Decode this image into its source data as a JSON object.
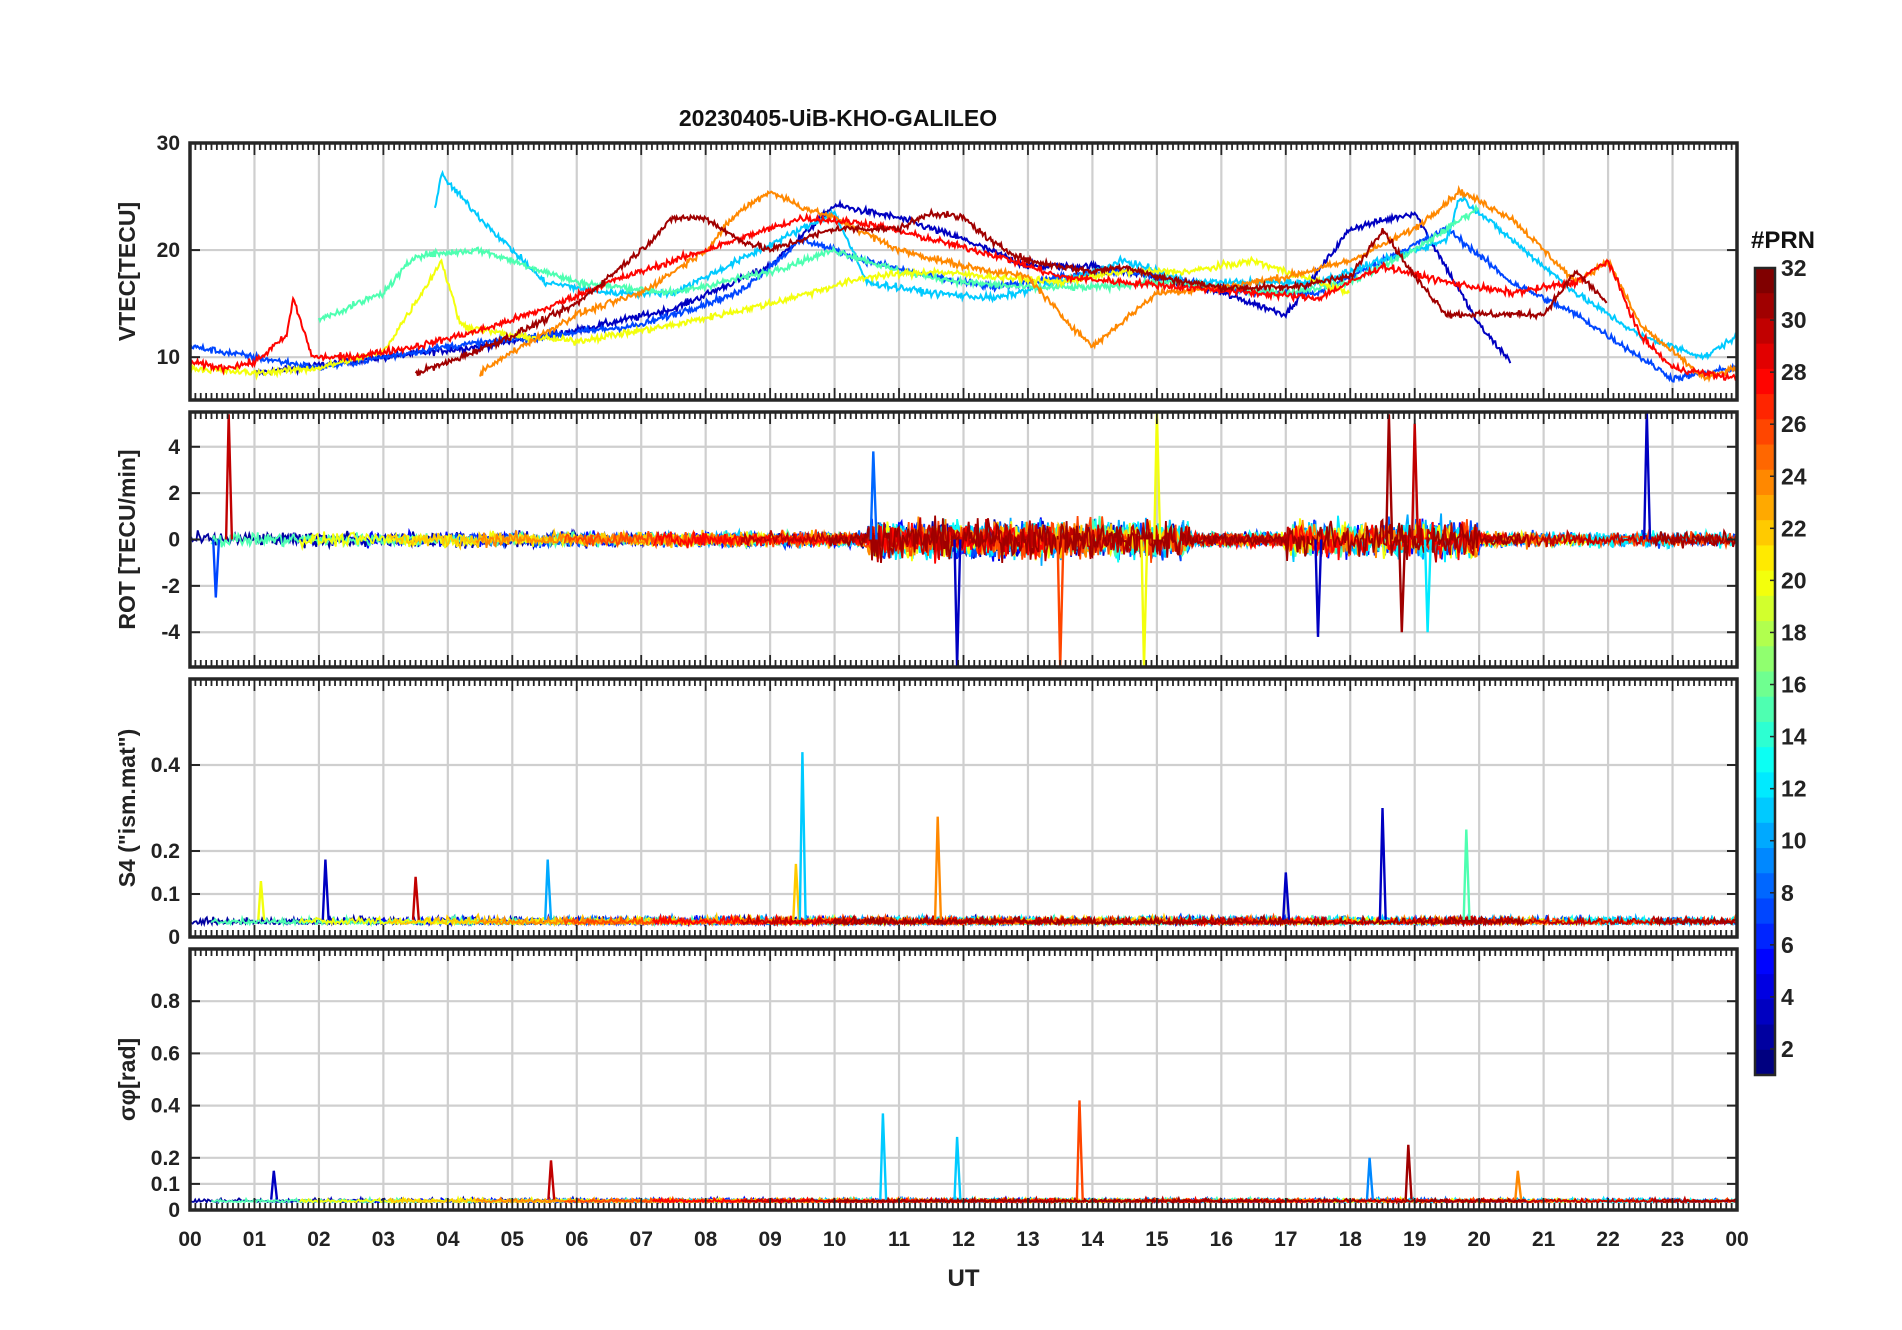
{
  "chart_data": {
    "type": "line",
    "title": "20230405-UiB-KHO-GALILEO",
    "xlabel": "UT",
    "x_tick_labels": [
      "00",
      "01",
      "02",
      "03",
      "04",
      "05",
      "06",
      "07",
      "08",
      "09",
      "10",
      "11",
      "12",
      "13",
      "14",
      "15",
      "16",
      "17",
      "18",
      "19",
      "20",
      "21",
      "22",
      "23",
      "00"
    ],
    "xlim_hours": [
      0,
      24
    ],
    "grid": true,
    "colorbar": {
      "title": "#PRN",
      "range": [
        1,
        32
      ],
      "colormap": "jet",
      "ticks": [
        "32",
        "30",
        "28",
        "26",
        "24",
        "22",
        "20",
        "18",
        "16",
        "14",
        "12",
        "10",
        "8",
        "6",
        "4",
        "2"
      ]
    },
    "panels": [
      {
        "ylabel": "VTEC[TECU]",
        "ylim": [
          6,
          30
        ],
        "yticks": [
          10,
          20,
          30
        ],
        "series": [
          {
            "prn": 3,
            "x": [
              1.0,
              3.0,
              4.5,
              6.0,
              7.5,
              9.0,
              10.0,
              11.0,
              12.0,
              13.0,
              14.0,
              15.0,
              16.0,
              17.0,
              18.0,
              19.0,
              20.0,
              20.5
            ],
            "y": [
              8.5,
              10,
              11,
              12.5,
              14.5,
              18.5,
              24.2,
              23,
              21,
              18.5,
              18.5,
              17.5,
              16,
              14,
              22,
              23.5,
              13,
              9.5
            ]
          },
          {
            "prn": 7,
            "x": [
              0.0,
              2.0,
              4.0,
              5.5,
              7.0,
              8.5,
              9.5,
              10.5,
              11.5,
              12.5,
              13.5,
              14.5,
              15.5,
              16.5,
              17.5,
              18.5,
              19.5,
              20.5,
              21.5,
              22.5,
              23.0,
              24.0
            ],
            "y": [
              11,
              9,
              11,
              12,
              13,
              16,
              21,
              19,
              17.5,
              16.5,
              17.5,
              18,
              17,
              16,
              16,
              19,
              22,
              17,
              14,
              10,
              8,
              9
            ]
          },
          {
            "prn": 11,
            "x": [
              3.8,
              3.9,
              4.5,
              5.0,
              5.5,
              6.5,
              7.5,
              8.5,
              9.5,
              10.0,
              10.5,
              11.5,
              12.5,
              13.5,
              14.5,
              15.5,
              16.5,
              17.5,
              18.5,
              19.5,
              19.7,
              20.5,
              21.5,
              22.5,
              23.5,
              24.0
            ],
            "y": [
              24,
              27,
              23,
              20,
              17,
              16,
              16,
              19,
              22,
              23.5,
              17,
              16,
              15.5,
              17,
              19,
              17,
              17,
              17,
              19,
              21,
              25,
              21,
              16,
              12,
              10,
              12
            ]
          },
          {
            "prn": 15,
            "x": [
              2.0,
              3.0,
              3.5,
              4.5,
              5.0,
              6.0,
              7.5,
              9.0,
              10.0,
              11.0,
              12.0,
              13.0,
              14.0,
              15.0,
              16.0,
              17.0,
              18.0,
              19.0,
              20.0
            ],
            "y": [
              13.5,
              16,
              19.5,
              20,
              19,
              17,
              16,
              18,
              20,
              18,
              17,
              16.5,
              16.5,
              17,
              16.5,
              16,
              17,
              20,
              24
            ]
          },
          {
            "prn": 20,
            "x": [
              0.0,
              1.0,
              2.0,
              3.0,
              3.7,
              3.9,
              4.2,
              5.0,
              6.0,
              7.5,
              9.0,
              10.5,
              11.5,
              12.5,
              13.5,
              14.5,
              15.5,
              16.5,
              17.5,
              18.0
            ],
            "y": [
              9,
              8.5,
              9,
              10.5,
              17,
              19,
              13,
              12,
              11.5,
              13,
              15,
              17.5,
              18,
              17.5,
              17,
              18,
              18,
              19,
              17,
              16
            ]
          },
          {
            "prn": 24,
            "x": [
              4.5,
              5.0,
              6.0,
              7.0,
              8.0,
              8.5,
              9.0,
              9.5,
              10.0,
              11.0,
              12.0,
              13.0,
              13.5,
              14.0,
              15.0,
              16.0,
              17.0,
              18.0,
              19.0,
              19.7,
              20.5,
              21.5,
              22.0,
              22.5,
              23.5,
              24.0
            ],
            "y": [
              8.5,
              10.5,
              14,
              16,
              20,
              23.5,
              25.5,
              24,
              23,
              20,
              18.5,
              17.5,
              14,
              11,
              16,
              16.5,
              17.5,
              19,
              22,
              25.5,
              23,
              17,
              19,
              13,
              8,
              9
            ]
          },
          {
            "prn": 28,
            "x": [
              0.0,
              0.5,
              1.0,
              1.5,
              1.6,
              1.9,
              2.5,
              3.5,
              4.5,
              5.5,
              6.5,
              7.5,
              8.5,
              9.5,
              10.5,
              11.5,
              12.5,
              13.5,
              14.5,
              15.5,
              16.5,
              17.5,
              18.5,
              19.5,
              20.5,
              21.5,
              22.0,
              22.5,
              23.0,
              24.0
            ],
            "y": [
              9.5,
              9,
              9.5,
              12,
              15.5,
              10,
              10,
              11,
              12.5,
              14.5,
              17,
              19,
              21,
              23,
              22.5,
              21,
              19.5,
              17.5,
              17,
              16.5,
              16,
              15.5,
              18.5,
              17,
              16,
              17,
              19,
              12,
              9,
              8
            ]
          },
          {
            "prn": 31,
            "x": [
              3.5,
              4.0,
              5.0,
              6.0,
              7.0,
              7.5,
              8.0,
              8.5,
              9.0,
              10.0,
              11.0,
              11.5,
              12.0,
              12.5,
              13.0,
              13.5,
              14.0,
              14.5,
              15.0,
              16.0,
              17.0,
              18.0,
              18.5,
              19.0,
              19.5,
              20.0,
              21.0,
              21.5,
              22.0
            ],
            "y": [
              8.5,
              9.5,
              12,
              15,
              20,
              23,
              23,
              21,
              20,
              22,
              22,
              23.5,
              23,
              20.5,
              19,
              18.5,
              18,
              18.5,
              17.5,
              16.5,
              16.5,
              17.5,
              22,
              17.5,
              14,
              14,
              14,
              18,
              15
            ]
          }
        ]
      },
      {
        "ylabel": "ROT [TECU/min]",
        "ylim": [
          -5.5,
          5.5
        ],
        "yticks": [
          -4,
          -2,
          0,
          2,
          4
        ],
        "spikes": [
          {
            "prn": 30,
            "x": 0.6,
            "y": 5.4
          },
          {
            "prn": 7,
            "x": 0.4,
            "y": -2.5
          },
          {
            "prn": 8,
            "x": 10.6,
            "y": 3.8
          },
          {
            "prn": 3,
            "x": 11.9,
            "y": -5.5
          },
          {
            "prn": 26,
            "x": 13.5,
            "y": -5.5
          },
          {
            "prn": 20,
            "x": 14.8,
            "y": -5.5
          },
          {
            "prn": 20,
            "x": 15.0,
            "y": 5.5
          },
          {
            "prn": 31,
            "x": 18.6,
            "y": 5.4
          },
          {
            "prn": 31,
            "x": 18.8,
            "y": -4.0
          },
          {
            "prn": 30,
            "x": 19.0,
            "y": 5.0
          },
          {
            "prn": 12,
            "x": 19.2,
            "y": -4.0
          },
          {
            "prn": 3,
            "x": 22.6,
            "y": 5.5
          },
          {
            "prn": 3,
            "x": 17.5,
            "y": -4.2
          }
        ]
      },
      {
        "ylabel": "S4 (\"ism.mat\")",
        "ylim": [
          0,
          0.6
        ],
        "yticks": [
          0,
          0.1,
          0.2,
          0.4
        ],
        "spikes": [
          {
            "prn": 3,
            "x": 2.1,
            "y": 0.18
          },
          {
            "prn": 30,
            "x": 3.5,
            "y": 0.14
          },
          {
            "prn": 10,
            "x": 5.55,
            "y": 0.18
          },
          {
            "prn": 22,
            "x": 9.4,
            "y": 0.17
          },
          {
            "prn": 11,
            "x": 9.5,
            "y": 0.43
          },
          {
            "prn": 24,
            "x": 11.6,
            "y": 0.28
          },
          {
            "prn": 3,
            "x": 18.5,
            "y": 0.3
          },
          {
            "prn": 15,
            "x": 19.8,
            "y": 0.25
          },
          {
            "prn": 3,
            "x": 17.0,
            "y": 0.15
          },
          {
            "prn": 20,
            "x": 1.1,
            "y": 0.13
          }
        ]
      },
      {
        "ylabel": "σφ[rad]",
        "ylim": [
          0,
          1.0
        ],
        "yticks": [
          0,
          0.1,
          0.2,
          0.4,
          0.6,
          0.8
        ],
        "spikes": [
          {
            "prn": 11,
            "x": 10.75,
            "y": 0.37
          },
          {
            "prn": 11,
            "x": 11.9,
            "y": 0.28
          },
          {
            "prn": 26,
            "x": 13.8,
            "y": 0.42
          },
          {
            "prn": 9,
            "x": 18.3,
            "y": 0.2
          },
          {
            "prn": 31,
            "x": 18.9,
            "y": 0.25
          },
          {
            "prn": 30,
            "x": 5.6,
            "y": 0.19
          },
          {
            "prn": 3,
            "x": 1.3,
            "y": 0.15
          },
          {
            "prn": 24,
            "x": 20.6,
            "y": 0.15
          }
        ]
      }
    ]
  }
}
